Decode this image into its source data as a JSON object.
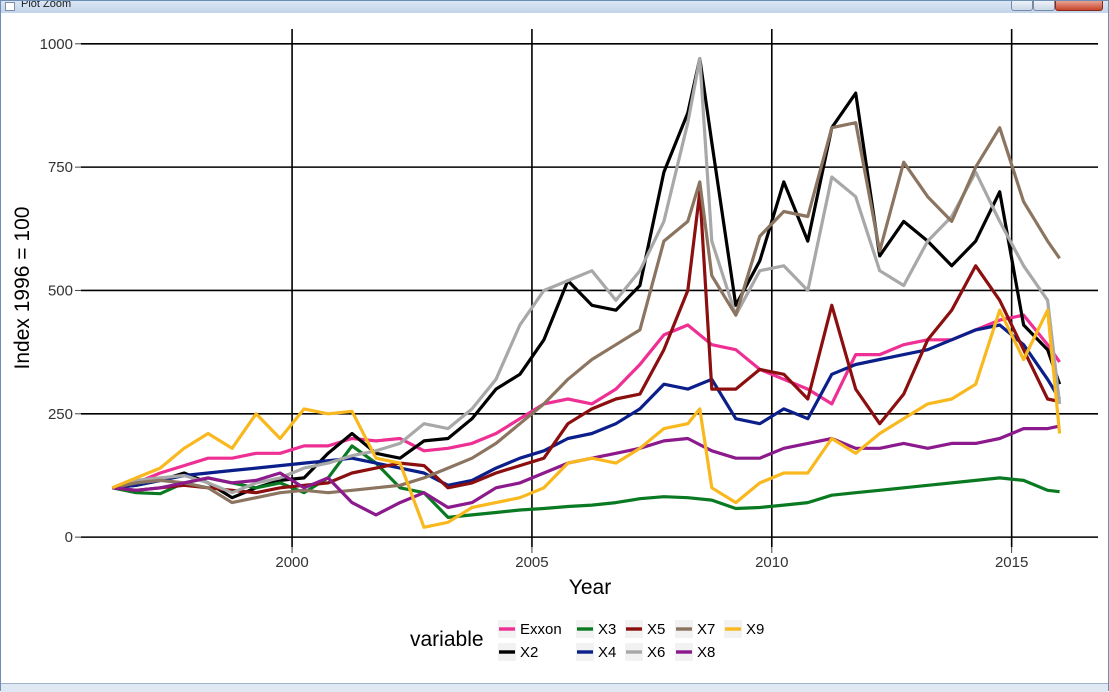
{
  "window": {
    "title": "Plot Zoom"
  },
  "chart_data": {
    "type": "line",
    "title": "",
    "xlabel": "Year",
    "ylabel": "Index 1996 = 100",
    "xlim": [
      1995.6,
      2016.8
    ],
    "ylim": [
      -20,
      1030
    ],
    "xticks": [
      2000,
      2005,
      2010,
      2015
    ],
    "xtick_labels": [
      "2000",
      "2005",
      "2010",
      "2015"
    ],
    "yticks": [
      0,
      250,
      500,
      750,
      1000
    ],
    "ytick_labels": [
      "0",
      "250",
      "500",
      "750",
      "1000"
    ],
    "grid": true,
    "legend": {
      "title": "variable",
      "position": "bottom"
    },
    "series": [
      {
        "name": "Exxon",
        "color": "#ee2f93",
        "x": [
          1996.25,
          1996.75,
          1997.25,
          1997.75,
          1998.25,
          1998.75,
          1999.25,
          1999.75,
          2000.25,
          2000.75,
          2001.25,
          2001.75,
          2002.25,
          2002.75,
          2003.25,
          2003.75,
          2004.25,
          2004.75,
          2005.25,
          2005.75,
          2006.25,
          2006.75,
          2007.25,
          2007.75,
          2008.25,
          2008.75,
          2009.25,
          2009.75,
          2010.25,
          2010.75,
          2011.25,
          2011.75,
          2012.25,
          2012.75,
          2013.25,
          2013.75,
          2014.25,
          2014.75,
          2015.25,
          2015.75,
          2016.0
        ],
        "y": [
          100,
          110,
          130,
          145,
          160,
          160,
          170,
          170,
          185,
          185,
          200,
          195,
          200,
          175,
          180,
          190,
          210,
          240,
          270,
          280,
          270,
          300,
          350,
          410,
          430,
          390,
          380,
          340,
          320,
          300,
          270,
          370,
          370,
          390,
          400,
          400,
          420,
          440,
          450,
          390,
          355
        ]
      },
      {
        "name": "X2",
        "color": "#000000",
        "x": [
          1996.25,
          1996.75,
          1997.25,
          1997.75,
          1998.25,
          1998.75,
          1999.25,
          1999.75,
          2000.25,
          2000.75,
          2001.25,
          2001.75,
          2002.25,
          2002.75,
          2003.25,
          2003.75,
          2004.25,
          2004.75,
          2005.25,
          2005.75,
          2006.25,
          2006.75,
          2007.25,
          2007.75,
          2008.25,
          2008.5,
          2008.75,
          2009.25,
          2009.75,
          2010.25,
          2010.75,
          2011.25,
          2011.75,
          2012.25,
          2012.75,
          2013.25,
          2013.75,
          2014.25,
          2014.75,
          2015.25,
          2015.75,
          2016.0
        ],
        "y": [
          100,
          105,
          115,
          130,
          110,
          80,
          100,
          115,
          120,
          170,
          210,
          170,
          160,
          195,
          200,
          240,
          300,
          330,
          400,
          520,
          470,
          460,
          510,
          740,
          860,
          970,
          800,
          470,
          560,
          720,
          600,
          830,
          900,
          570,
          640,
          600,
          550,
          600,
          700,
          430,
          380,
          310
        ]
      },
      {
        "name": "X3",
        "color": "#0a7a22",
        "x": [
          1996.25,
          1996.75,
          1997.25,
          1997.75,
          1998.25,
          1998.75,
          1999.25,
          1999.75,
          2000.25,
          2000.75,
          2001.25,
          2001.75,
          2002.25,
          2002.75,
          2003.25,
          2003.75,
          2004.25,
          2004.75,
          2005.25,
          2005.75,
          2006.25,
          2006.75,
          2007.25,
          2007.75,
          2008.25,
          2008.75,
          2009.25,
          2009.75,
          2010.25,
          2010.75,
          2011.25,
          2011.75,
          2012.25,
          2012.75,
          2013.25,
          2013.75,
          2014.25,
          2014.75,
          2015.25,
          2015.75,
          2016.0
        ],
        "y": [
          100,
          90,
          88,
          110,
          120,
          110,
          100,
          110,
          90,
          120,
          185,
          150,
          100,
          90,
          40,
          45,
          50,
          55,
          58,
          62,
          65,
          70,
          78,
          82,
          80,
          75,
          58,
          60,
          65,
          70,
          85,
          90,
          95,
          100,
          105,
          110,
          115,
          120,
          115,
          95,
          92
        ]
      },
      {
        "name": "X4",
        "color": "#0b1f8a",
        "x": [
          1996.25,
          1996.75,
          1997.25,
          1997.75,
          1998.25,
          1998.75,
          1999.25,
          1999.75,
          2000.25,
          2000.75,
          2001.25,
          2001.75,
          2002.25,
          2002.75,
          2003.25,
          2003.75,
          2004.25,
          2004.75,
          2005.25,
          2005.75,
          2006.25,
          2006.75,
          2007.25,
          2007.75,
          2008.25,
          2008.75,
          2009.25,
          2009.75,
          2010.25,
          2010.75,
          2011.25,
          2011.75,
          2012.25,
          2012.75,
          2013.25,
          2013.75,
          2014.25,
          2014.75,
          2015.25,
          2015.75,
          2016.0
        ],
        "y": [
          100,
          105,
          115,
          125,
          130,
          135,
          140,
          145,
          150,
          155,
          160,
          150,
          140,
          130,
          105,
          115,
          140,
          160,
          175,
          200,
          210,
          230,
          260,
          310,
          300,
          320,
          240,
          230,
          260,
          240,
          330,
          350,
          360,
          370,
          380,
          400,
          420,
          430,
          390,
          320,
          280
        ]
      },
      {
        "name": "X5",
        "color": "#8c0f10",
        "x": [
          1996.25,
          1996.75,
          1997.25,
          1997.75,
          1998.25,
          1998.75,
          1999.25,
          1999.75,
          2000.25,
          2000.75,
          2001.25,
          2001.75,
          2002.25,
          2002.75,
          2003.25,
          2003.75,
          2004.25,
          2004.75,
          2005.25,
          2005.75,
          2006.25,
          2006.75,
          2007.25,
          2007.75,
          2008.25,
          2008.5,
          2008.75,
          2009.25,
          2009.75,
          2010.25,
          2010.75,
          2011.25,
          2011.75,
          2012.25,
          2012.75,
          2013.25,
          2013.75,
          2014.25,
          2014.75,
          2015.25,
          2015.75,
          2016.0
        ],
        "y": [
          100,
          95,
          100,
          105,
          100,
          95,
          90,
          100,
          105,
          110,
          130,
          140,
          150,
          145,
          100,
          110,
          130,
          145,
          160,
          230,
          260,
          280,
          290,
          380,
          500,
          700,
          300,
          300,
          340,
          330,
          280,
          470,
          300,
          230,
          290,
          400,
          460,
          550,
          480,
          380,
          280,
          275
        ]
      },
      {
        "name": "X6",
        "color": "#a8a8a8",
        "x": [
          1996.25,
          1996.75,
          1997.25,
          1997.75,
          1998.25,
          1998.75,
          1999.25,
          1999.75,
          2000.25,
          2000.75,
          2001.25,
          2001.75,
          2002.25,
          2002.75,
          2003.25,
          2003.75,
          2004.25,
          2004.75,
          2005.25,
          2005.75,
          2006.25,
          2006.75,
          2007.25,
          2007.75,
          2008.25,
          2008.5,
          2008.75,
          2009.25,
          2009.75,
          2010.25,
          2010.75,
          2011.25,
          2011.75,
          2012.25,
          2012.75,
          2013.25,
          2013.75,
          2014.25,
          2014.75,
          2015.25,
          2015.75,
          2016.0
        ],
        "y": [
          100,
          115,
          120,
          125,
          110,
          90,
          110,
          120,
          140,
          150,
          165,
          175,
          190,
          230,
          220,
          260,
          320,
          430,
          500,
          520,
          540,
          480,
          540,
          640,
          840,
          970,
          600,
          450,
          540,
          550,
          500,
          730,
          690,
          540,
          510,
          600,
          650,
          740,
          640,
          550,
          480,
          270
        ]
      },
      {
        "name": "X7",
        "color": "#8c7560",
        "x": [
          1996.25,
          1996.75,
          1997.25,
          1997.75,
          1998.25,
          1998.75,
          1999.25,
          1999.75,
          2000.25,
          2000.75,
          2001.25,
          2001.75,
          2002.25,
          2002.75,
          2003.25,
          2003.75,
          2004.25,
          2004.75,
          2005.25,
          2005.75,
          2006.25,
          2006.75,
          2007.25,
          2007.75,
          2008.25,
          2008.5,
          2008.75,
          2009.25,
          2009.75,
          2010.25,
          2010.75,
          2011.25,
          2011.75,
          2012.25,
          2012.75,
          2013.25,
          2013.75,
          2014.25,
          2014.75,
          2015.25,
          2015.75,
          2016.0
        ],
        "y": [
          100,
          110,
          115,
          110,
          100,
          70,
          80,
          90,
          95,
          90,
          95,
          100,
          105,
          120,
          140,
          160,
          190,
          230,
          270,
          320,
          360,
          390,
          420,
          600,
          640,
          720,
          530,
          450,
          610,
          660,
          650,
          830,
          840,
          580,
          760,
          690,
          640,
          750,
          830,
          680,
          600,
          565
        ]
      },
      {
        "name": "X8",
        "color": "#8c1a8c",
        "x": [
          1996.25,
          1996.75,
          1997.25,
          1997.75,
          1998.25,
          1998.75,
          1999.25,
          1999.75,
          2000.25,
          2000.75,
          2001.25,
          2001.75,
          2002.25,
          2002.75,
          2003.25,
          2003.75,
          2004.25,
          2004.75,
          2005.25,
          2005.75,
          2006.25,
          2006.75,
          2007.25,
          2007.75,
          2008.25,
          2008.75,
          2009.25,
          2009.75,
          2010.25,
          2010.75,
          2011.25,
          2011.75,
          2012.25,
          2012.75,
          2013.25,
          2013.75,
          2014.25,
          2014.75,
          2015.25,
          2015.75,
          2016.0
        ],
        "y": [
          100,
          95,
          100,
          110,
          120,
          110,
          115,
          130,
          100,
          120,
          70,
          45,
          70,
          90,
          60,
          70,
          100,
          110,
          130,
          150,
          160,
          170,
          180,
          195,
          200,
          175,
          160,
          160,
          180,
          190,
          200,
          180,
          180,
          190,
          180,
          190,
          190,
          200,
          220,
          220,
          225
        ]
      },
      {
        "name": "X9",
        "color": "#f9b81e",
        "x": [
          1996.25,
          1996.75,
          1997.25,
          1997.75,
          1998.25,
          1998.75,
          1999.25,
          1999.75,
          2000.25,
          2000.75,
          2001.25,
          2001.75,
          2002.25,
          2002.75,
          2003.25,
          2003.75,
          2004.25,
          2004.75,
          2005.25,
          2005.75,
          2006.25,
          2006.75,
          2007.25,
          2007.75,
          2008.25,
          2008.5,
          2008.75,
          2009.25,
          2009.75,
          2010.25,
          2010.75,
          2011.25,
          2011.75,
          2012.25,
          2012.75,
          2013.25,
          2013.75,
          2014.25,
          2014.75,
          2015.25,
          2015.75,
          2016.0
        ],
        "y": [
          100,
          120,
          140,
          180,
          210,
          180,
          250,
          200,
          260,
          250,
          255,
          160,
          150,
          20,
          30,
          60,
          70,
          80,
          100,
          150,
          160,
          150,
          180,
          220,
          230,
          260,
          100,
          70,
          110,
          130,
          130,
          200,
          170,
          210,
          240,
          270,
          280,
          310,
          460,
          360,
          460,
          210
        ]
      }
    ]
  }
}
